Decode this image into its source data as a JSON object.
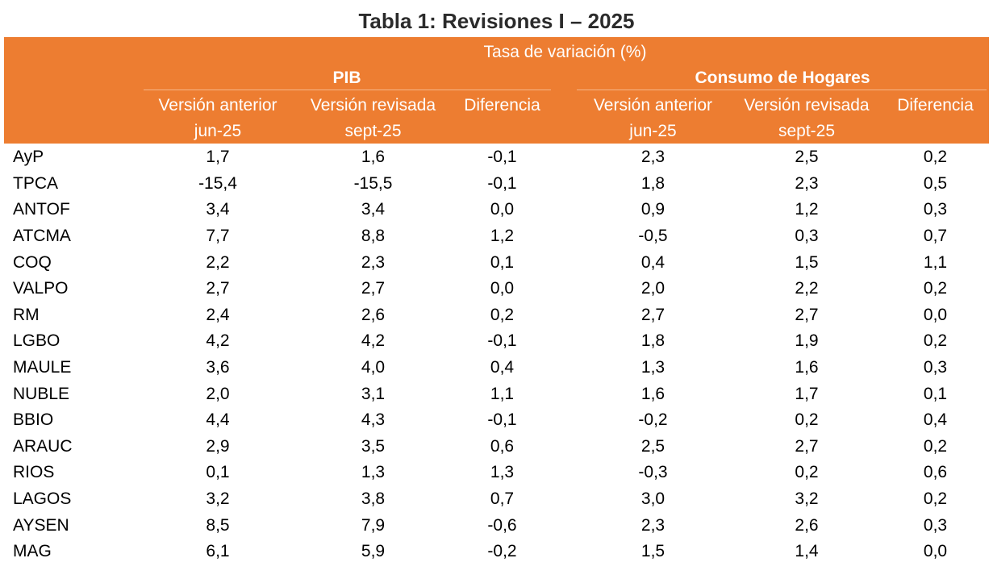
{
  "title": "Tabla 1: Revisiones I – 2025",
  "header": {
    "super": "Tasa de variación (%)",
    "groups": [
      "PIB",
      "Consumo de Hogares"
    ],
    "columns": [
      {
        "line1": "Versión anterior",
        "line2": "jun-25"
      },
      {
        "line1": "Versión revisada",
        "line2": "sept-25"
      },
      {
        "line1": "Diferencia",
        "line2": ""
      },
      {
        "line1": "Versión anterior",
        "line2": "jun-25"
      },
      {
        "line1": "Versión revisada",
        "line2": "sept-25"
      },
      {
        "line1": "Diferencia",
        "line2": ""
      }
    ]
  },
  "rows": [
    {
      "region": "AyP",
      "values": [
        "1,7",
        "1,6",
        "-0,1",
        "2,3",
        "2,5",
        "0,2"
      ]
    },
    {
      "region": "TPCA",
      "values": [
        "-15,4",
        "-15,5",
        "-0,1",
        "1,8",
        "2,3",
        "0,5"
      ]
    },
    {
      "region": "ANTOF",
      "values": [
        "3,4",
        "3,4",
        "0,0",
        "0,9",
        "1,2",
        "0,3"
      ]
    },
    {
      "region": "ATCMA",
      "values": [
        "7,7",
        "8,8",
        "1,2",
        "-0,5",
        "0,3",
        "0,7"
      ]
    },
    {
      "region": "COQ",
      "values": [
        "2,2",
        "2,3",
        "0,1",
        "0,4",
        "1,5",
        "1,1"
      ]
    },
    {
      "region": "VALPO",
      "values": [
        "2,7",
        "2,7",
        "0,0",
        "2,0",
        "2,2",
        "0,2"
      ]
    },
    {
      "region": "RM",
      "values": [
        "2,4",
        "2,6",
        "0,2",
        "2,7",
        "2,7",
        "0,0"
      ]
    },
    {
      "region": "LGBO",
      "values": [
        "4,2",
        "4,2",
        "-0,1",
        "1,8",
        "1,9",
        "0,2"
      ]
    },
    {
      "region": "MAULE",
      "values": [
        "3,6",
        "4,0",
        "0,4",
        "1,3",
        "1,6",
        "0,3"
      ]
    },
    {
      "region": "NUBLE",
      "values": [
        "2,0",
        "3,1",
        "1,1",
        "1,6",
        "1,7",
        "0,1"
      ]
    },
    {
      "region": "BBIO",
      "values": [
        "4,4",
        "4,3",
        "-0,1",
        "-0,2",
        "0,2",
        "0,4"
      ]
    },
    {
      "region": "ARAUC",
      "values": [
        "2,9",
        "3,5",
        "0,6",
        "2,5",
        "2,7",
        "0,2"
      ]
    },
    {
      "region": "RIOS",
      "values": [
        "0,1",
        "1,3",
        "1,3",
        "-0,3",
        "0,2",
        "0,6"
      ]
    },
    {
      "region": "LAGOS",
      "values": [
        "3,2",
        "3,8",
        "0,7",
        "3,0",
        "3,2",
        "0,2"
      ]
    },
    {
      "region": "AYSEN",
      "values": [
        "8,5",
        "7,9",
        "-0,6",
        "2,3",
        "2,6",
        "0,3"
      ]
    },
    {
      "region": "MAG",
      "values": [
        "6,1",
        "5,9",
        "-0,2",
        "1,5",
        "1,4",
        "0,0"
      ]
    }
  ],
  "colors": {
    "header_background": "#ED7D31",
    "header_text": "#FFFFFF"
  }
}
